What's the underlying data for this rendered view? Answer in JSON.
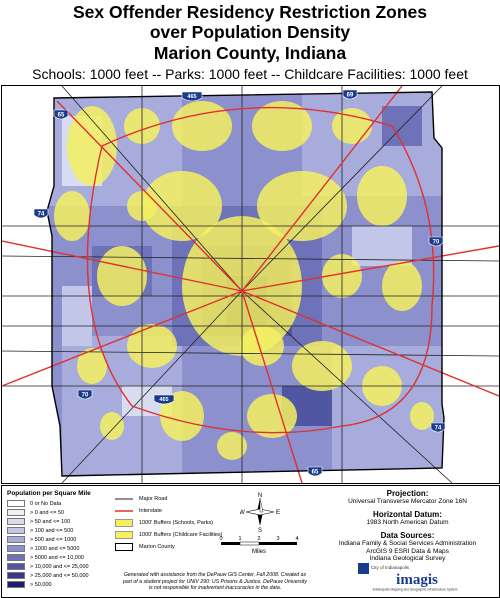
{
  "title": {
    "line1": "Sex Offender Residency Restriction Zones",
    "line2": "over Population Density",
    "line3": "Marion County, Indiana",
    "subtitle": "Schools: 1000 feet -- Parks: 1000 feet -- Childcare Facilities: 1000 feet"
  },
  "map": {
    "shields": {
      "i465_top": "465",
      "i465_bottom": "465",
      "i65_north": "65",
      "i65_south": "65",
      "i69": "69",
      "i74_west": "74",
      "i74_southeast": "74",
      "i70_east": "70",
      "i70_west": "70"
    },
    "colors": {
      "buffer": "#f5f060",
      "interstate": "#e03030",
      "major_road": "#222222",
      "county_border": "#000000"
    }
  },
  "legend": {
    "density_title": "Population per Square Mile",
    "density_classes": [
      {
        "label": "0 or No Data",
        "color": "#ffffff"
      },
      {
        "label": "> 0 and <= 50",
        "color": "#eceef8"
      },
      {
        "label": "> 50 and <= 100",
        "color": "#d8dcf0"
      },
      {
        "label": "> 100 and <= 500",
        "color": "#c2c6e8"
      },
      {
        "label": "> 500 and <= 1000",
        "color": "#a8acdc"
      },
      {
        "label": "> 1000 and <= 5000",
        "color": "#8c90cc"
      },
      {
        "label": "> 5000 and <= 10,000",
        "color": "#6e72b8"
      },
      {
        "label": "> 10,000 and <= 25,000",
        "color": "#5056a2"
      },
      {
        "label": "> 25,000 and <= 50,000",
        "color": "#343a88"
      },
      {
        "label": "> 50,000",
        "color": "#1a1f6a"
      }
    ],
    "features": [
      {
        "label": "Major Road",
        "symbol": "major-road"
      },
      {
        "label": "Interstate",
        "symbol": "interstate"
      },
      {
        "label": "1000' Buffers (Schools, Parks)",
        "symbol": "buffer-schools"
      },
      {
        "label": "1000' Buffers (Childcare Facilities)",
        "symbol": "buffer-childcare"
      },
      {
        "label": "Marion County",
        "symbol": "county"
      }
    ],
    "compass": {
      "n": "N",
      "s": "S",
      "e": "E",
      "w": "W"
    },
    "scale": {
      "ticks": [
        "0",
        "1",
        "2",
        "3",
        "4"
      ],
      "unit": "Miles"
    }
  },
  "info": {
    "projection_heading": "Projection:",
    "projection_value": "Universal Transverse Mercator Zone 16N",
    "datum_heading": "Horizontal Datum:",
    "datum_value": "1983 North American Datum",
    "sources_heading": "Data Sources:",
    "sources": [
      "Indiana Family & Social Services Administration",
      "ArcGIS 9 ESRI Data & Maps",
      "Indiana Geological Survey"
    ]
  },
  "credit": {
    "line1": "Generated with assistance from the DePauw GIS Center, Fall 2008.  Created as",
    "line2": "part of a student project for UNIV 290: US Prisons & Justice.  DePauw University",
    "line3": "is not responsible for inadvertant inaccuracies in the data."
  },
  "logo": {
    "small_text": "City of Indianapolis",
    "brand": "imagis",
    "tagline": "Indianapolis Mapping and Geographic Infrastructure System"
  }
}
